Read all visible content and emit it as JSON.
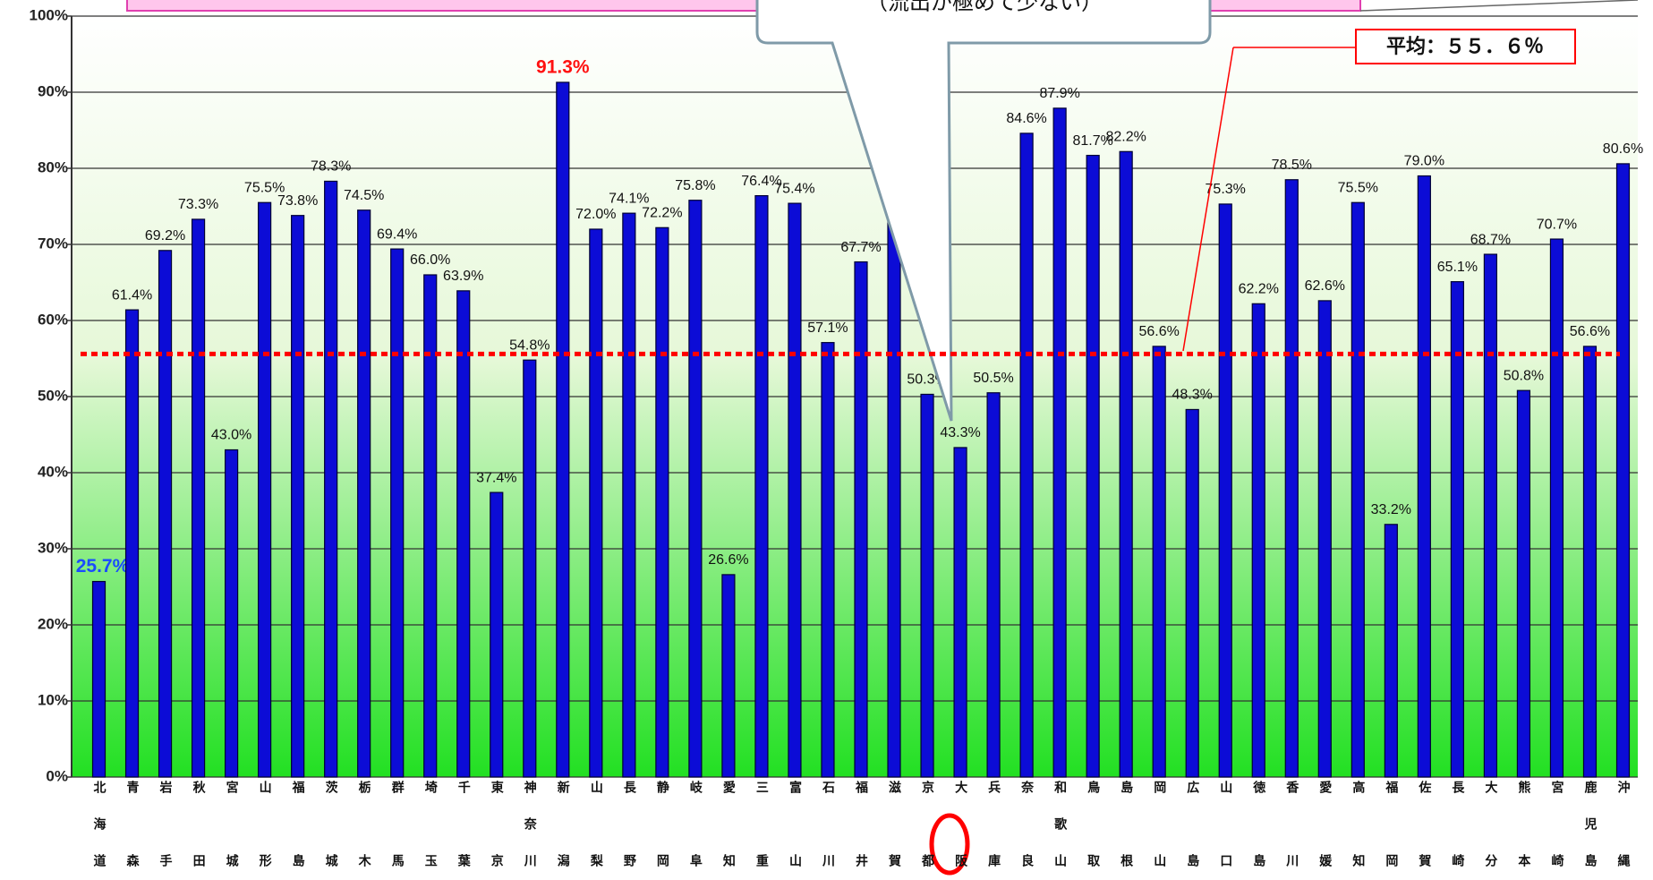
{
  "chart_data": {
    "type": "bar",
    "categories": [
      "北海道",
      "青森",
      "岩手",
      "秋田",
      "宮城",
      "山形",
      "福島",
      "茨城",
      "栃木",
      "群馬",
      "埼玉",
      "千葉",
      "東京",
      "神奈川",
      "新潟",
      "山梨",
      "長野",
      "静岡",
      "岐阜",
      "愛知",
      "三重",
      "富山",
      "石川",
      "福井",
      "滋賀",
      "京都",
      "大阪",
      "兵庫",
      "奈良",
      "和歌山",
      "鳥取",
      "島根",
      "岡山",
      "広島",
      "山口",
      "徳島",
      "香川",
      "愛媛",
      "高知",
      "福岡",
      "佐賀",
      "長崎",
      "大分",
      "熊本",
      "宮崎",
      "鹿児島",
      "沖縄"
    ],
    "values": [
      25.7,
      61.4,
      69.2,
      73.3,
      43.0,
      75.5,
      73.8,
      78.3,
      74.5,
      69.4,
      66.0,
      63.9,
      37.4,
      54.8,
      91.3,
      72.0,
      74.1,
      72.2,
      75.8,
      26.6,
      76.4,
      75.4,
      57.1,
      67.7,
      76,
      50.3,
      43.3,
      50.5,
      84.6,
      87.9,
      81.7,
      82.2,
      56.6,
      48.3,
      75.3,
      62.2,
      78.5,
      62.6,
      75.5,
      33.2,
      79.0,
      65.1,
      68.7,
      50.8,
      70.7,
      56.6,
      80.6
    ],
    "value_labels": [
      "25.7%",
      "61.4%",
      "69.2%",
      "73.3%",
      "43.0%",
      "75.5%",
      "73.8%",
      "78.3%",
      "74.5%",
      "69.4%",
      "66.0%",
      "63.9%",
      "37.4%",
      "54.8%",
      "91.3%",
      "72.0%",
      "74.1%",
      "72.2%",
      "75.8%",
      "26.6%",
      "76.4%",
      "75.4%",
      "57.1%",
      "67.7%",
      null,
      "50.3%",
      "43.3%",
      "50.5%",
      "84.6%",
      "87.9%",
      "81.7%",
      "82.2%",
      "56.6%",
      "48.3%",
      "75.3%",
      "62.2%",
      "78.5%",
      "62.6%",
      "75.5%",
      "33.2%",
      "79.0%",
      "65.1%",
      "68.7%",
      "50.8%",
      "70.7%",
      "56.6%",
      "80.6%"
    ],
    "color": "#0c0cd6",
    "max_label_color": "#ff1010",
    "min_label_color": "#1a4cff",
    "ylim": [
      0,
      100
    ],
    "yticks": [
      {
        "value": 0,
        "label": "0%"
      },
      {
        "value": 10,
        "label": "10%"
      },
      {
        "value": 20,
        "label": "20%"
      },
      {
        "value": 30,
        "label": "30%"
      },
      {
        "value": 40,
        "label": "40%"
      },
      {
        "value": 50,
        "label": "50%"
      },
      {
        "value": 60,
        "label": "60%"
      },
      {
        "value": 70,
        "label": "70%"
      },
      {
        "value": 80,
        "label": "80%"
      },
      {
        "value": 90,
        "label": "90%"
      },
      {
        "value": 100,
        "label": "100%"
      }
    ],
    "grid": true,
    "average": {
      "value": 55.6,
      "label": "平均：５５．６％",
      "color": "#ff0000"
    },
    "annotation": "（流出が極めて少ない）"
  }
}
